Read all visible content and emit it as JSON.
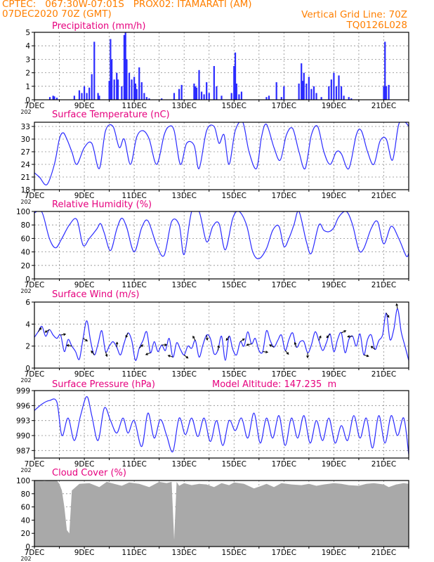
{
  "header": {
    "left_line1": "CPTEC:   067:30W-07:01S   PROX02: ITAMARATI (AM)",
    "left_line2": "07DEC2020 70Z (GMT)",
    "right_line2": "Vertical Grid Line: 70Z",
    "right_line3": "TQ0126L028"
  },
  "colors": {
    "header": "#ff7f00",
    "title": "#e6007e",
    "line": "#2b2bff",
    "bars": "#2b2bff",
    "cloud": "#a9a9a9",
    "arrows": "#000000"
  },
  "x_tick_labels": [
    "7DEC",
    "9DEC",
    "11DEC",
    "13DEC",
    "15DEC",
    "17DEC",
    "19DEC",
    "21DEC"
  ],
  "year_stub": "202",
  "chart_data": [
    {
      "type": "bar",
      "title": "Precipitation (mm/h)",
      "ylim": [
        0,
        5
      ],
      "yticks": [
        "0",
        "1",
        "2",
        "3",
        "4",
        "5"
      ],
      "grid": true,
      "day_range": [
        7,
        22
      ],
      "bars": [
        [
          7.62,
          0.2
        ],
        [
          7.75,
          0.3
        ],
        [
          7.8,
          0.25
        ],
        [
          7.9,
          0.15
        ],
        [
          8.6,
          0.3
        ],
        [
          8.8,
          0.7
        ],
        [
          8.9,
          0.5
        ],
        [
          9.0,
          1.0
        ],
        [
          9.1,
          0.5
        ],
        [
          9.2,
          0.9
        ],
        [
          9.3,
          1.9
        ],
        [
          9.4,
          4.3
        ],
        [
          9.55,
          0.5
        ],
        [
          9.6,
          0.3
        ],
        [
          10.0,
          1.4
        ],
        [
          10.05,
          4.5
        ],
        [
          10.1,
          3.0
        ],
        [
          10.2,
          1.5
        ],
        [
          10.3,
          2.0
        ],
        [
          10.35,
          1.5
        ],
        [
          10.5,
          1.0
        ],
        [
          10.6,
          4.8
        ],
        [
          10.65,
          5.0
        ],
        [
          10.7,
          3.0
        ],
        [
          10.8,
          2.0
        ],
        [
          10.9,
          1.5
        ],
        [
          11.0,
          1.7
        ],
        [
          11.05,
          1.2
        ],
        [
          11.1,
          0.8
        ],
        [
          11.2,
          2.4
        ],
        [
          11.3,
          1.3
        ],
        [
          11.4,
          0.5
        ],
        [
          11.5,
          0.2
        ],
        [
          11.6,
          0.1
        ],
        [
          12.1,
          0.1
        ],
        [
          12.6,
          0.5
        ],
        [
          12.8,
          0.8
        ],
        [
          12.9,
          1.1
        ],
        [
          13.4,
          1.2
        ],
        [
          13.45,
          1.0
        ],
        [
          13.5,
          0.9
        ],
        [
          13.6,
          2.2
        ],
        [
          13.7,
          0.6
        ],
        [
          13.8,
          0.4
        ],
        [
          13.9,
          1.3
        ],
        [
          14.0,
          0.5
        ],
        [
          14.2,
          2.5
        ],
        [
          14.3,
          1.0
        ],
        [
          14.5,
          0.3
        ],
        [
          14.9,
          0.5
        ],
        [
          15.0,
          2.5
        ],
        [
          15.05,
          3.5
        ],
        [
          15.1,
          1.2
        ],
        [
          15.2,
          0.4
        ],
        [
          15.3,
          0.6
        ],
        [
          16.3,
          0.2
        ],
        [
          16.4,
          0.3
        ],
        [
          16.7,
          1.3
        ],
        [
          16.9,
          0.2
        ],
        [
          17.0,
          1.0
        ],
        [
          17.6,
          1.2
        ],
        [
          17.7,
          2.7
        ],
        [
          17.75,
          1.4
        ],
        [
          17.8,
          2.0
        ],
        [
          17.9,
          1.2
        ],
        [
          18.0,
          1.7
        ],
        [
          18.1,
          0.8
        ],
        [
          18.2,
          1.0
        ],
        [
          18.3,
          0.5
        ],
        [
          18.5,
          0.2
        ],
        [
          18.8,
          1.0
        ],
        [
          18.9,
          1.5
        ],
        [
          19.0,
          2.0
        ],
        [
          19.1,
          1.0
        ],
        [
          19.2,
          1.8
        ],
        [
          19.3,
          1.0
        ],
        [
          19.4,
          0.3
        ],
        [
          19.6,
          0.2
        ],
        [
          19.7,
          0.1
        ],
        [
          21.0,
          1.0
        ],
        [
          21.05,
          4.3
        ],
        [
          21.1,
          1.0
        ],
        [
          21.2,
          1.1
        ]
      ]
    },
    {
      "type": "line",
      "title": "Surface Temperature (nC)",
      "ylim": [
        18,
        34
      ],
      "yticks": [
        "18",
        "21",
        "24",
        "27",
        "30",
        "33"
      ],
      "grid": true,
      "day_range": [
        7,
        22
      ],
      "x": [
        7.0,
        7.2,
        7.5,
        7.8,
        8.0,
        8.15,
        8.3,
        8.5,
        8.7,
        9.0,
        9.3,
        9.6,
        9.85,
        10.15,
        10.4,
        10.6,
        10.85,
        11.1,
        11.35,
        11.6,
        11.9,
        12.2,
        12.4,
        12.6,
        12.85,
        13.1,
        13.4,
        13.6,
        13.9,
        14.2,
        14.4,
        14.6,
        14.8,
        15.05,
        15.35,
        15.6,
        15.9,
        16.1,
        16.3,
        16.6,
        16.85,
        17.1,
        17.35,
        17.6,
        17.85,
        18.1,
        18.35,
        18.6,
        18.85,
        19.1,
        19.3,
        19.6,
        19.9,
        20.1,
        20.35,
        20.6,
        20.85,
        21.1,
        21.35,
        21.6,
        21.85,
        22.0
      ],
      "y": [
        22,
        21,
        19.2,
        24,
        30,
        31.5,
        30,
        27,
        24,
        28,
        29,
        23,
        32,
        33,
        28,
        30,
        24,
        30.5,
        32,
        30,
        24,
        31,
        33,
        32,
        24,
        29,
        28.5,
        23,
        32,
        33,
        29,
        31,
        24,
        32,
        34,
        27,
        23,
        30.5,
        33.5,
        28,
        25,
        31,
        32.5,
        27,
        23,
        31,
        33,
        27,
        24,
        27,
        26.5,
        23,
        31,
        32,
        27,
        24,
        29.5,
        30,
        25,
        33.5,
        34,
        33
      ]
    },
    {
      "type": "line",
      "title": "Relative Humidity (%)",
      "ylim": [
        0,
        100
      ],
      "yticks": [
        "0",
        "20",
        "40",
        "60",
        "80",
        "100"
      ],
      "grid": true,
      "day_range": [
        7,
        22
      ],
      "x": [
        7.0,
        7.3,
        7.6,
        7.85,
        8.1,
        8.4,
        8.7,
        8.95,
        9.2,
        9.5,
        9.65,
        9.8,
        10.05,
        10.3,
        10.5,
        10.7,
        11.0,
        11.3,
        11.55,
        11.9,
        12.2,
        12.5,
        12.8,
        13.0,
        13.3,
        13.6,
        13.9,
        14.15,
        14.4,
        14.65,
        14.95,
        15.2,
        15.5,
        15.75,
        16.0,
        16.3,
        16.55,
        16.8,
        17.0,
        17.2,
        17.4,
        17.6,
        17.9,
        18.1,
        18.4,
        18.6,
        18.8,
        19.0,
        19.2,
        19.5,
        19.75,
        20.0,
        20.2,
        20.5,
        20.75,
        21.0,
        21.3,
        21.6,
        21.9,
        22.0
      ],
      "y": [
        98,
        99,
        60,
        46,
        60,
        80,
        88,
        50,
        60,
        74,
        82,
        68,
        42,
        74,
        90,
        76,
        40,
        76,
        86,
        50,
        35,
        85,
        80,
        36,
        100,
        100,
        55,
        78,
        82,
        43,
        90,
        100,
        80,
        40,
        30,
        45,
        72,
        78,
        48,
        60,
        80,
        100,
        55,
        38,
        80,
        72,
        70,
        76,
        92,
        100,
        80,
        43,
        45,
        75,
        85,
        52,
        78,
        60,
        34,
        38
      ]
    },
    {
      "type": "line",
      "title": "Surface Wind (m/s)",
      "ylim": [
        0,
        6
      ],
      "yticks": [
        "0",
        "2",
        "4",
        "6"
      ],
      "grid": true,
      "day_range": [
        7,
        22
      ],
      "x": [
        7.0,
        7.15,
        7.3,
        7.45,
        7.6,
        7.75,
        7.9,
        8.05,
        8.2,
        8.35,
        8.5,
        8.65,
        8.8,
        8.95,
        9.1,
        9.25,
        9.4,
        9.55,
        9.7,
        9.85,
        10.0,
        10.15,
        10.3,
        10.45,
        10.6,
        10.75,
        10.9,
        11.05,
        11.2,
        11.35,
        11.5,
        11.65,
        11.8,
        11.95,
        12.1,
        12.25,
        12.4,
        12.55,
        12.7,
        12.85,
        13.0,
        13.15,
        13.3,
        13.45,
        13.6,
        13.75,
        13.9,
        14.05,
        14.2,
        14.35,
        14.5,
        14.65,
        14.8,
        14.95,
        15.1,
        15.25,
        15.4,
        15.55,
        15.7,
        15.85,
        16.0,
        16.15,
        16.3,
        16.45,
        16.6,
        16.75,
        16.9,
        17.05,
        17.2,
        17.35,
        17.5,
        17.65,
        17.8,
        17.95,
        18.1,
        18.25,
        18.4,
        18.55,
        18.7,
        18.85,
        19.0,
        19.15,
        19.3,
        19.45,
        19.6,
        19.75,
        19.9,
        20.05,
        20.2,
        20.35,
        20.5,
        20.65,
        20.8,
        20.95,
        21.1,
        21.25,
        21.4,
        21.55,
        21.7,
        21.85,
        22.0
      ],
      "y": [
        2.8,
        3.3,
        3.8,
        2.9,
        3.5,
        3.0,
        2.7,
        3.0,
        1.5,
        2.6,
        2.0,
        1.5,
        0.8,
        2.7,
        4.3,
        2.5,
        1.2,
        2.2,
        3.4,
        1.5,
        2.0,
        2.4,
        1.9,
        1.2,
        2.3,
        3.2,
        2.5,
        0.7,
        1.8,
        2.5,
        3.3,
        1.4,
        2.4,
        1.5,
        2.1,
        1.6,
        2.7,
        1.0,
        2.3,
        1.7,
        1.2,
        2.0,
        1.8,
        2.5,
        1.0,
        2.1,
        3.0,
        2.7,
        1.3,
        1.6,
        2.9,
        0.7,
        2.9,
        1.7,
        1.2,
        2.4,
        2.0,
        3.3,
        2.2,
        2.7,
        1.6,
        1.5,
        3.4,
        2.5,
        1.9,
        2.5,
        3.0,
        1.6,
        2.6,
        3.2,
        1.9,
        2.4,
        2.4,
        1.4,
        2.1,
        3.3,
        2.5,
        1.6,
        2.3,
        3.1,
        1.5,
        2.6,
        3.2,
        1.4,
        2.6,
        2.9,
        2.0,
        3.1,
        1.2,
        2.6,
        3.0,
        1.7,
        2.5,
        3.0,
        5.0,
        2.6,
        3.5,
        5.4,
        3.3,
        2.0,
        0.7
      ]
    },
    {
      "type": "line",
      "title": "Surface Pressure (hPa)",
      "annotation": "Model Altitude: 147.235  m",
      "ylim": [
        985.5,
        999
      ],
      "yticks": [
        "987",
        "990",
        "993",
        "996",
        "999"
      ],
      "grid": true,
      "day_range": [
        7,
        22
      ],
      "x": [
        7.0,
        7.3,
        7.6,
        7.9,
        8.1,
        8.35,
        8.6,
        8.85,
        9.1,
        9.3,
        9.55,
        9.8,
        10.05,
        10.3,
        10.55,
        10.75,
        11.0,
        11.3,
        11.55,
        11.8,
        12.05,
        12.3,
        12.55,
        12.8,
        13.05,
        13.3,
        13.55,
        13.8,
        14.05,
        14.3,
        14.55,
        14.8,
        15.05,
        15.3,
        15.55,
        15.8,
        16.05,
        16.3,
        16.55,
        16.8,
        17.05,
        17.3,
        17.55,
        17.8,
        18.05,
        18.3,
        18.55,
        18.8,
        19.05,
        19.3,
        19.55,
        19.8,
        20.05,
        20.3,
        20.55,
        20.8,
        21.05,
        21.3,
        21.55,
        21.8,
        22.0
      ],
      "y": [
        995,
        996.3,
        997,
        996.7,
        990,
        993.5,
        989,
        994,
        997.8,
        994,
        989,
        995.5,
        993,
        990.5,
        993.5,
        990.5,
        993,
        987.8,
        994.5,
        989.5,
        993.2,
        990,
        986.8,
        993.5,
        990.2,
        993.5,
        989.8,
        993.5,
        988.8,
        993,
        988,
        993,
        991,
        993.5,
        989.5,
        994.5,
        988.5,
        993.5,
        989.5,
        994,
        988,
        993.5,
        989.5,
        994,
        988.5,
        993,
        989,
        993.5,
        988.5,
        992,
        989,
        994,
        989.5,
        993.5,
        987.5,
        994,
        988.5,
        994,
        990,
        993.5,
        986.2
      ]
    },
    {
      "type": "area",
      "title": "Cloud Cover (%)",
      "ylim": [
        0,
        100
      ],
      "yticks": [
        "0",
        "20",
        "40",
        "60",
        "80",
        "100"
      ],
      "grid": true,
      "day_range": [
        7,
        22
      ],
      "x": [
        7.0,
        7.2,
        7.4,
        7.6,
        7.9,
        8.0,
        8.1,
        8.2,
        8.3,
        8.4,
        8.5,
        8.8,
        9.2,
        9.6,
        9.9,
        10.2,
        10.5,
        10.8,
        11.2,
        11.6,
        11.9,
        12.0,
        12.3,
        12.5,
        12.6,
        12.7,
        12.8,
        13.0,
        13.3,
        13.6,
        13.9,
        14.2,
        14.5,
        14.8,
        15.0,
        15.4,
        15.8,
        16.1,
        16.3,
        16.6,
        16.9,
        17.3,
        17.7,
        18.0,
        18.3,
        18.6,
        19.0,
        19.3,
        19.6,
        20.0,
        20.3,
        20.6,
        21.0,
        21.2,
        21.5,
        21.8,
        22.0
      ],
      "y": [
        100,
        100,
        99,
        100,
        100,
        95,
        85,
        60,
        25,
        20,
        85,
        95,
        96,
        90,
        98,
        95,
        92,
        97,
        95,
        90,
        96,
        98,
        96,
        98,
        10,
        98,
        92,
        96,
        93,
        95,
        94,
        90,
        96,
        93,
        97,
        95,
        88,
        92,
        95,
        90,
        96,
        94,
        93,
        95,
        92,
        94,
        96,
        95,
        93,
        92,
        95,
        96,
        94,
        90,
        94,
        96,
        95
      ]
    }
  ]
}
